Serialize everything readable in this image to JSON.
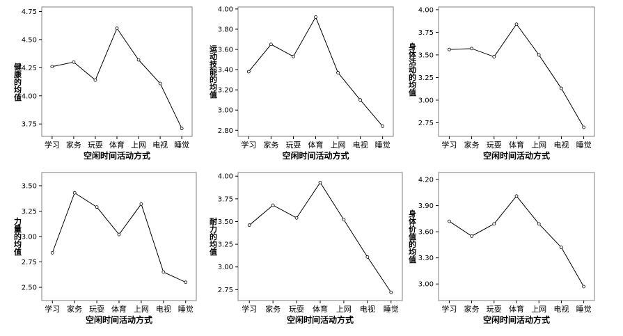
{
  "chart_data": [
    {
      "type": "line",
      "categories": [
        "学习",
        "家务",
        "玩耍",
        "体育",
        "上网",
        "电视",
        "睡觉"
      ],
      "values": [
        4.26,
        4.3,
        4.14,
        4.6,
        4.32,
        4.11,
        3.71
      ],
      "xlabel": "空闲时间活动方式",
      "ylabel": "健康的均值",
      "ylim": [
        3.64,
        4.79
      ],
      "yticks": [
        3.75,
        4.0,
        4.25,
        4.5,
        4.75
      ],
      "ytick_labels": [
        "3.75",
        "4.00",
        "4.25",
        "4.50",
        "4.75"
      ],
      "grid": false
    },
    {
      "type": "line",
      "categories": [
        "学习",
        "家务",
        "玩耍",
        "体育",
        "上网",
        "电视",
        "睡觉"
      ],
      "values": [
        3.38,
        3.65,
        3.53,
        3.92,
        3.37,
        3.1,
        2.84
      ],
      "xlabel": "空闲时间活动方式",
      "ylabel": "运动技能的均值",
      "ylim": [
        2.74,
        4.02
      ],
      "yticks": [
        2.8,
        3.0,
        3.2,
        3.4,
        3.6,
        3.8,
        4.0
      ],
      "ytick_labels": [
        "2.80",
        "3.00",
        "3.20",
        "3.40",
        "3.60",
        "3.80",
        "4.00"
      ],
      "grid": false
    },
    {
      "type": "line",
      "categories": [
        "学习",
        "家务",
        "玩耍",
        "体育",
        "上网",
        "电视",
        "睡觉"
      ],
      "values": [
        3.56,
        3.57,
        3.48,
        3.84,
        3.5,
        3.13,
        2.7
      ],
      "xlabel": "空闲时间活动方式",
      "ylabel": "身体活动的均值",
      "ylim": [
        2.6,
        4.03
      ],
      "yticks": [
        2.75,
        3.0,
        3.25,
        3.5,
        3.75,
        4.0
      ],
      "ytick_labels": [
        "2.75",
        "3.00",
        "3.25",
        "3.50",
        "3.75",
        "4.00"
      ],
      "grid": false
    },
    {
      "type": "line",
      "categories": [
        "学习",
        "家务",
        "玩耍",
        "体育",
        "上网",
        "电视",
        "睡觉"
      ],
      "values": [
        2.84,
        3.43,
        3.29,
        3.02,
        3.32,
        2.65,
        2.55
      ],
      "xlabel": "空闲时间活动方式",
      "ylabel": "力量的均值",
      "ylim": [
        2.37,
        3.63
      ],
      "yticks": [
        2.5,
        2.75,
        3.0,
        3.25,
        3.5
      ],
      "ytick_labels": [
        "2.50",
        "2.75",
        "3.00",
        "3.25",
        "3.50"
      ],
      "grid": false
    },
    {
      "type": "line",
      "categories": [
        "学习",
        "家务",
        "玩耍",
        "体育",
        "上网",
        "电视",
        "睡觉"
      ],
      "values": [
        3.46,
        3.68,
        3.54,
        3.93,
        3.52,
        3.11,
        2.72
      ],
      "xlabel": "空闲时间活动方式",
      "ylabel": "耐力的均值",
      "ylim": [
        2.63,
        4.04
      ],
      "yticks": [
        2.75,
        3.0,
        3.25,
        3.5,
        3.75,
        4.0
      ],
      "ytick_labels": [
        "2.75",
        "3.00",
        "3.25",
        "3.50",
        "3.75",
        "4.00"
      ],
      "grid": false
    },
    {
      "type": "line",
      "categories": [
        "学习",
        "家务",
        "玩耍",
        "体育",
        "上网",
        "电视",
        "睡觉"
      ],
      "values": [
        3.72,
        3.55,
        3.69,
        4.01,
        3.69,
        3.42,
        2.97
      ],
      "xlabel": "空闲时间活动方式",
      "ylabel": "身体价值的均值",
      "ylim": [
        2.81,
        4.28
      ],
      "yticks": [
        3.0,
        3.3,
        3.6,
        3.9,
        4.2
      ],
      "ytick_labels": [
        "3.00",
        "3.30",
        "3.60",
        "3.90",
        "4.20"
      ],
      "grid": false
    }
  ]
}
